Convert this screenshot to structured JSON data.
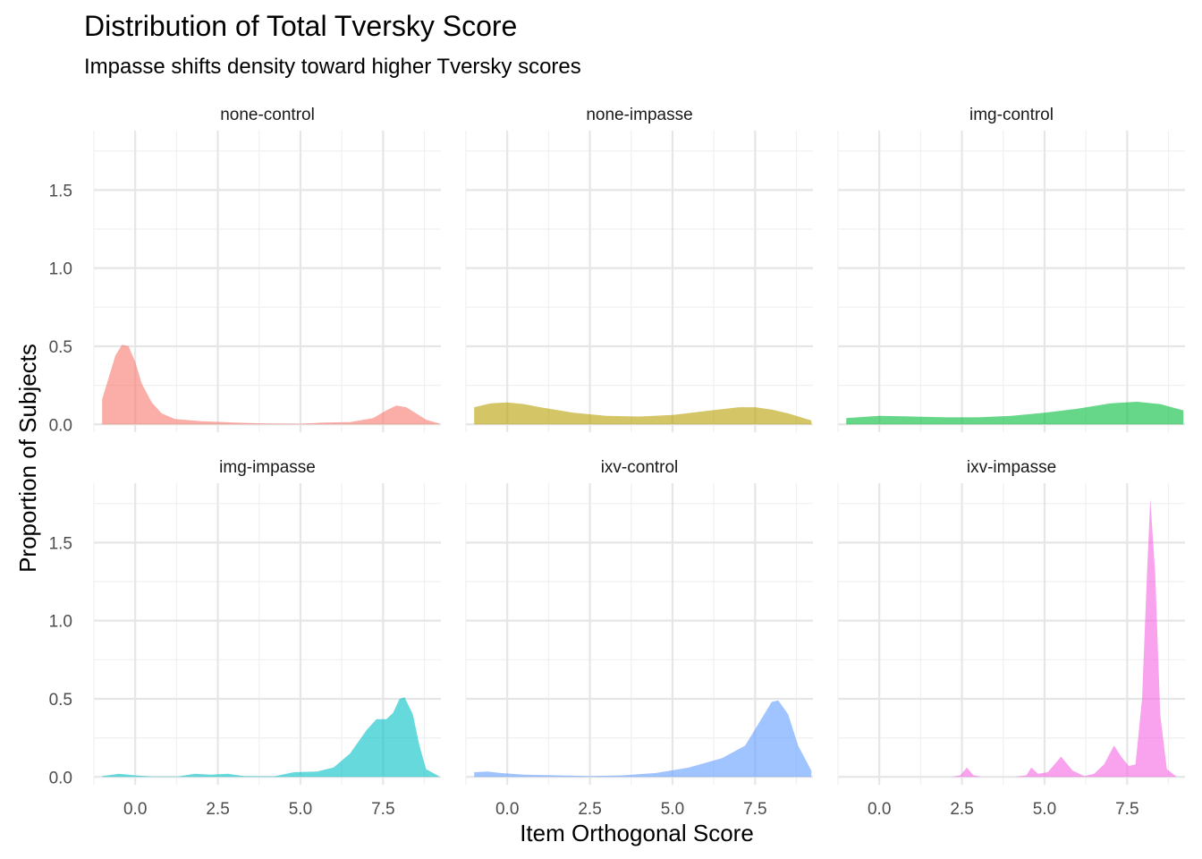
{
  "title": "Distribution of Total Tversky Score",
  "subtitle": "Impasse shifts density toward higher Tversky scores",
  "chart_data": {
    "type": "area",
    "subtype": "faceted density",
    "title": "Distribution of Total Tversky Score",
    "subtitle": "Impasse shifts density toward higher Tversky scores",
    "xlabel": "Item Orthogonal Score",
    "ylabel": "Proportion of Subjects",
    "xlim": [
      -1.25,
      9.25
    ],
    "ylim": [
      -0.05,
      1.88
    ],
    "x_ticks": [
      0,
      2.5,
      5,
      7.5
    ],
    "x_tick_labels": [
      "0.0",
      "2.5",
      "5.0",
      "7.5"
    ],
    "y_ticks": [
      0,
      0.5,
      1,
      1.5
    ],
    "y_tick_labels": [
      "0.0",
      "0.5",
      "1.0",
      "1.5"
    ],
    "grid": true,
    "legend": "none",
    "facets": [
      {
        "name": "none-control",
        "color": "#F8766D",
        "points": [
          [
            -1,
            0.16
          ],
          [
            -0.8,
            0.3
          ],
          [
            -0.6,
            0.44
          ],
          [
            -0.4,
            0.51
          ],
          [
            -0.2,
            0.5
          ],
          [
            0,
            0.4
          ],
          [
            0.2,
            0.26
          ],
          [
            0.5,
            0.14
          ],
          [
            0.8,
            0.07
          ],
          [
            1.2,
            0.035
          ],
          [
            2,
            0.02
          ],
          [
            3,
            0.012
          ],
          [
            4,
            0.005
          ],
          [
            5,
            0.004
          ],
          [
            5.7,
            0.012
          ],
          [
            6.5,
            0.015
          ],
          [
            7.2,
            0.04
          ],
          [
            7.6,
            0.09
          ],
          [
            7.9,
            0.12
          ],
          [
            8.2,
            0.11
          ],
          [
            8.5,
            0.07
          ],
          [
            8.8,
            0.03
          ],
          [
            9.2,
            0.005
          ]
        ]
      },
      {
        "name": "none-impasse",
        "color": "#B79F00",
        "points": [
          [
            -1,
            0.11
          ],
          [
            -0.5,
            0.135
          ],
          [
            0,
            0.14
          ],
          [
            0.5,
            0.13
          ],
          [
            1,
            0.11
          ],
          [
            2,
            0.075
          ],
          [
            3,
            0.055
          ],
          [
            4,
            0.05
          ],
          [
            5,
            0.06
          ],
          [
            6,
            0.085
          ],
          [
            7,
            0.11
          ],
          [
            7.5,
            0.11
          ],
          [
            8,
            0.095
          ],
          [
            8.5,
            0.07
          ],
          [
            9.2,
            0.025
          ]
        ]
      },
      {
        "name": "img-control",
        "color": "#00BA38",
        "points": [
          [
            -1,
            0.04
          ],
          [
            0,
            0.055
          ],
          [
            1,
            0.05
          ],
          [
            2,
            0.045
          ],
          [
            3,
            0.045
          ],
          [
            4,
            0.055
          ],
          [
            5,
            0.075
          ],
          [
            6,
            0.1
          ],
          [
            7,
            0.135
          ],
          [
            7.8,
            0.145
          ],
          [
            8.5,
            0.13
          ],
          [
            9.2,
            0.09
          ]
        ]
      },
      {
        "name": "img-impasse",
        "color": "#00BFC4",
        "points": [
          [
            -1,
            0.005
          ],
          [
            -0.5,
            0.02
          ],
          [
            0,
            0.01
          ],
          [
            0.5,
            0.003
          ],
          [
            1.3,
            0.003
          ],
          [
            1.8,
            0.02
          ],
          [
            2.3,
            0.015
          ],
          [
            2.8,
            0.02
          ],
          [
            3.3,
            0.005
          ],
          [
            4.2,
            0.004
          ],
          [
            4.8,
            0.03
          ],
          [
            5.5,
            0.035
          ],
          [
            6,
            0.06
          ],
          [
            6.5,
            0.15
          ],
          [
            7,
            0.3
          ],
          [
            7.3,
            0.37
          ],
          [
            7.6,
            0.37
          ],
          [
            7.8,
            0.41
          ],
          [
            8,
            0.5
          ],
          [
            8.15,
            0.51
          ],
          [
            8.4,
            0.4
          ],
          [
            8.6,
            0.2
          ],
          [
            8.8,
            0.05
          ],
          [
            9.2,
            0.003
          ]
        ]
      },
      {
        "name": "ixv-control",
        "color": "#619CFF",
        "points": [
          [
            -1,
            0.03
          ],
          [
            -0.6,
            0.035
          ],
          [
            -0.2,
            0.025
          ],
          [
            0.5,
            0.015
          ],
          [
            1.5,
            0.01
          ],
          [
            2.5,
            0.005
          ],
          [
            3.5,
            0.01
          ],
          [
            4.5,
            0.025
          ],
          [
            5.5,
            0.06
          ],
          [
            6.5,
            0.12
          ],
          [
            7.2,
            0.2
          ],
          [
            7.6,
            0.34
          ],
          [
            8,
            0.48
          ],
          [
            8.2,
            0.49
          ],
          [
            8.5,
            0.4
          ],
          [
            8.8,
            0.2
          ],
          [
            9.2,
            0.04
          ]
        ]
      },
      {
        "name": "ixv-impasse",
        "color": "#F564E3",
        "points": [
          [
            2.2,
            0
          ],
          [
            2.45,
            0.01
          ],
          [
            2.65,
            0.06
          ],
          [
            2.85,
            0.01
          ],
          [
            3.1,
            0
          ],
          [
            4.1,
            0
          ],
          [
            4.45,
            0.01
          ],
          [
            4.6,
            0.06
          ],
          [
            4.8,
            0.02
          ],
          [
            5.1,
            0.03
          ],
          [
            5.5,
            0.13
          ],
          [
            5.85,
            0.04
          ],
          [
            6.2,
            0.005
          ],
          [
            6.5,
            0.02
          ],
          [
            6.8,
            0.08
          ],
          [
            7.1,
            0.2
          ],
          [
            7.35,
            0.12
          ],
          [
            7.55,
            0.07
          ],
          [
            7.75,
            0.08
          ],
          [
            7.95,
            0.5
          ],
          [
            8.1,
            1.3
          ],
          [
            8.2,
            1.78
          ],
          [
            8.35,
            1.3
          ],
          [
            8.5,
            0.4
          ],
          [
            8.7,
            0.05
          ],
          [
            9.0,
            0
          ]
        ]
      }
    ]
  }
}
